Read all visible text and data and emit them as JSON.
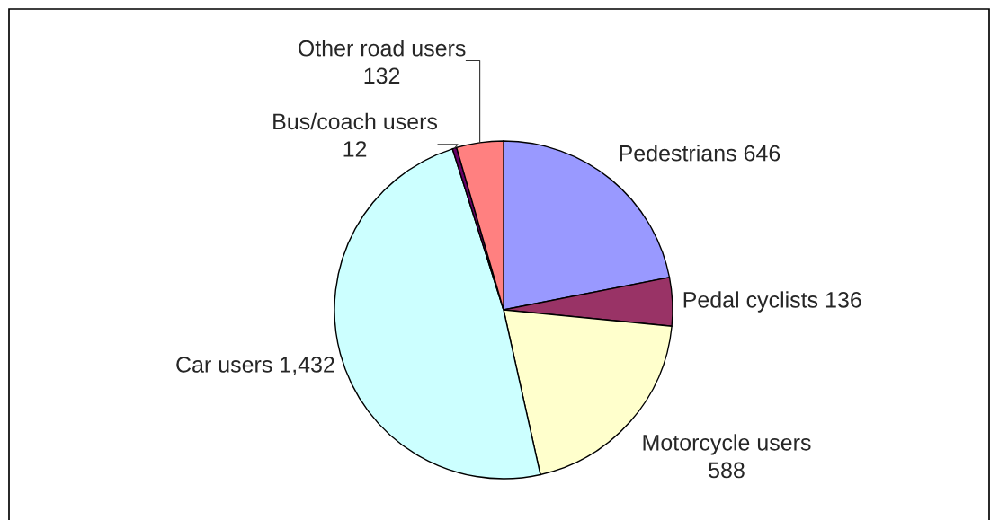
{
  "chart_data": {
    "type": "pie",
    "categories": [
      "Pedestrians",
      "Pedal cyclists",
      "Motorcycle users",
      "Car users",
      "Bus/coach users",
      "Other road users"
    ],
    "values": [
      646,
      136,
      588,
      1432,
      12,
      132
    ],
    "value_labels": [
      "646",
      "136",
      "588",
      "1,432",
      "12",
      "132"
    ],
    "colors": [
      "#9999ff",
      "#993366",
      "#ffffcc",
      "#ccffff",
      "#660066",
      "#ff8080"
    ],
    "legend": false
  }
}
